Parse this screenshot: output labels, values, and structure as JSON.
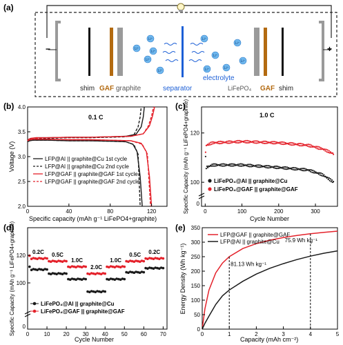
{
  "colors": {
    "black": "#1a1a1a",
    "red": "#e4212a",
    "blue": "#1c5fd6",
    "gaf": "#b36a10",
    "gray": "#9a9a9a"
  },
  "panel_a": {
    "label": "(a)",
    "minus": "−",
    "plus": "+",
    "li": "Li⁺",
    "labels": {
      "shim_left": "shim",
      "gaf_left": "GAF",
      "graphite": "graphite",
      "separator": "separator",
      "electrolyte": "electrolyte",
      "lfp": "LiFePO₄",
      "gaf_right": "GAF",
      "shim_right": "shim"
    }
  },
  "chart_data": [
    {
      "panel": "(b)",
      "type": "line",
      "annotation": "0.1 C",
      "xlabel": "Specific capacity (mAh g⁻¹ LiFePO4+graphite)",
      "ylabel": "Voltage (V)",
      "xlim": [
        0,
        135
      ],
      "ylim": [
        2.0,
        4.0
      ],
      "xticks": [
        "0",
        "40",
        "80",
        "120"
      ],
      "yticks": [
        "2.0",
        "2.5",
        "3.0",
        "3.5",
        "4.0"
      ],
      "legend": [
        "LFP@Al    || graphite@Cu   1st cycle",
        "LFP@Al    || graphite@Cu   2nd cycle",
        "LFP@GAF || graphite@GAF 1st cycle",
        "LFP@GAF || graphite@GAF 2nd cycle"
      ],
      "series": [
        {
          "name": "LFP@Al || graphite@Cu 1st cycle",
          "color": "black",
          "dash": false,
          "curves": [
            {
              "x": [
                0,
                1,
                3,
                8,
                20,
                40,
                60,
                80,
                95,
                105,
                110,
                112,
                113
              ],
              "y": [
                3.3,
                3.33,
                3.36,
                3.38,
                3.38,
                3.39,
                3.39,
                3.4,
                3.41,
                3.45,
                3.6,
                3.8,
                4.0
              ]
            },
            {
              "x": [
                0,
                2,
                5,
                20,
                40,
                60,
                80,
                95,
                102,
                106,
                109,
                111
              ],
              "y": [
                3.3,
                3.32,
                3.33,
                3.33,
                3.32,
                3.32,
                3.31,
                3.3,
                3.25,
                3.1,
                2.6,
                2.0
              ]
            }
          ]
        },
        {
          "name": "LFP@Al || graphite@Cu 2nd cycle",
          "color": "black",
          "dash": true,
          "curves": [
            {
              "x": [
                0,
                2,
                5,
                20,
                40,
                60,
                80,
                95,
                103,
                107,
                109,
                110
              ],
              "y": [
                3.3,
                3.34,
                3.36,
                3.37,
                3.38,
                3.38,
                3.39,
                3.4,
                3.44,
                3.6,
                3.8,
                4.0
              ]
            },
            {
              "x": [
                0,
                2,
                5,
                20,
                40,
                60,
                80,
                95,
                103,
                107,
                109
              ],
              "y": [
                3.3,
                3.32,
                3.33,
                3.33,
                3.32,
                3.32,
                3.31,
                3.3,
                3.24,
                3.05,
                2.0
              ]
            }
          ]
        },
        {
          "name": "LFP@GAF || graphite@GAF 1st cycle",
          "color": "red",
          "dash": false,
          "curves": [
            {
              "x": [
                0,
                1,
                3,
                8,
                20,
                40,
                60,
                80,
                100,
                112,
                118,
                121,
                123
              ],
              "y": [
                3.32,
                3.35,
                3.37,
                3.38,
                3.38,
                3.39,
                3.39,
                3.4,
                3.41,
                3.46,
                3.62,
                3.82,
                4.0
              ]
            },
            {
              "x": [
                0,
                2,
                5,
                20,
                40,
                60,
                80,
                100,
                110,
                115,
                118,
                120
              ],
              "y": [
                3.32,
                3.34,
                3.35,
                3.35,
                3.34,
                3.34,
                3.33,
                3.32,
                3.27,
                3.1,
                2.6,
                2.0
              ]
            }
          ]
        },
        {
          "name": "LFP@GAF || graphite@GAF 2nd cycle",
          "color": "red",
          "dash": true,
          "curves": [
            {
              "x": [
                0,
                2,
                5,
                20,
                40,
                60,
                80,
                100,
                112,
                117,
                120,
                122
              ],
              "y": [
                3.32,
                3.35,
                3.37,
                3.38,
                3.39,
                3.39,
                3.4,
                3.41,
                3.46,
                3.62,
                3.82,
                4.0
              ]
            },
            {
              "x": [
                0,
                2,
                5,
                20,
                40,
                60,
                80,
                100,
                111,
                116,
                119
              ],
              "y": [
                3.32,
                3.34,
                3.35,
                3.35,
                3.34,
                3.34,
                3.33,
                3.32,
                3.25,
                3.05,
                2.0
              ]
            }
          ]
        }
      ]
    },
    {
      "panel": "(c)",
      "type": "scatter",
      "annotation": "1.0 C",
      "xlabel": "Cycle Number",
      "ylabel": "Specific Capacity (mAh g⁻¹ LiFePO4+graphite)",
      "xlim": [
        -10,
        360
      ],
      "ylim": [
        60,
        130
      ],
      "xticks": [
        "0",
        "100",
        "200",
        "300"
      ],
      "yticks": [
        "0",
        "100",
        "120"
      ],
      "legend": [
        "LiFePO₄@Al    || graphite@Cu",
        "LiFePO₄@GAF || graphite@GAF"
      ],
      "series": [
        {
          "name": "LiFePO4@Al || graphite@Cu",
          "color": "black",
          "cycles": 350,
          "trend_x": [
            1,
            3,
            20,
            100,
            200,
            280,
            320,
            350
          ],
          "trend_y": [
            110,
            106,
            107,
            107,
            106,
            105,
            103,
            100
          ]
        },
        {
          "name": "LiFePO4@GAF || graphite@GAF",
          "color": "red",
          "cycles": 350,
          "trend_x": [
            1,
            3,
            20,
            100,
            200,
            280,
            320,
            350
          ],
          "trend_y": [
            112,
            115,
            116,
            116.5,
            116,
            115,
            113.5,
            111.5
          ]
        }
      ]
    },
    {
      "panel": "(d)",
      "type": "scatter",
      "xlabel": "Cycle Number",
      "ylabel": "Specific Capacity (mAh g⁻¹ LiFePO4+graphite)",
      "xlim": [
        0,
        72
      ],
      "ylim": [
        60,
        140
      ],
      "xticks": [
        "0",
        "10",
        "20",
        "30",
        "40",
        "50",
        "60",
        "70"
      ],
      "yticks": [
        "0",
        "100",
        "120"
      ],
      "rate_labels": [
        "0.2C",
        "0.5C",
        "1.0C",
        "2.0C",
        "1.0C",
        "0.5C",
        "0.2C"
      ],
      "legend": [
        "LiFePO₄@Al    || graphite@Cu",
        "LiFePO₄@GAF || graphite@GAF"
      ],
      "series": [
        {
          "name": "LiFePO4@Al || graphite@Cu",
          "color": "black",
          "step_values": [
            110,
            107,
            103,
            94,
            103,
            108,
            111
          ]
        },
        {
          "name": "LiFePO4@GAF || graphite@GAF",
          "color": "red",
          "step_values": [
            118,
            116,
            112,
            107,
            112,
            116,
            118
          ]
        }
      ]
    },
    {
      "panel": "(e)",
      "type": "line",
      "xlabel": "Capacity (mAh cm⁻²)",
      "ylabel": "Energy Density (Wh kg⁻¹)",
      "xlim": [
        0,
        5
      ],
      "ylim": [
        0,
        350
      ],
      "xticks": [
        "0",
        "1",
        "2",
        "3",
        "4",
        "5"
      ],
      "yticks": [
        "0",
        "50",
        "100",
        "150",
        "200",
        "250",
        "300",
        "350"
      ],
      "legend": [
        "LFP@GAF || graphite@GAF",
        "LFP@Al    || graphite@Cu"
      ],
      "annotations": [
        "81.13 Wh kg⁻¹",
        "75.9 Wh kg⁻¹"
      ],
      "series": [
        {
          "name": "LFP@GAF || graphite@GAF",
          "color": "red",
          "x": [
            0,
            0.1,
            0.25,
            0.5,
            0.75,
            1,
            1.5,
            2,
            2.5,
            3,
            3.5,
            4,
            4.5,
            5
          ],
          "y": [
            0,
            70,
            135,
            194,
            228,
            250,
            278,
            295,
            307,
            316,
            323,
            329,
            334,
            338
          ]
        },
        {
          "name": "LFP@Al || graphite@Cu",
          "color": "black",
          "x": [
            0,
            0.1,
            0.25,
            0.5,
            0.75,
            1,
            1.5,
            2,
            2.5,
            3,
            3.5,
            4,
            4.5,
            5
          ],
          "y": [
            0,
            20,
            45,
            85,
            115,
            135,
            165,
            190,
            210,
            226,
            240,
            252,
            262,
            270
          ]
        }
      ]
    }
  ]
}
